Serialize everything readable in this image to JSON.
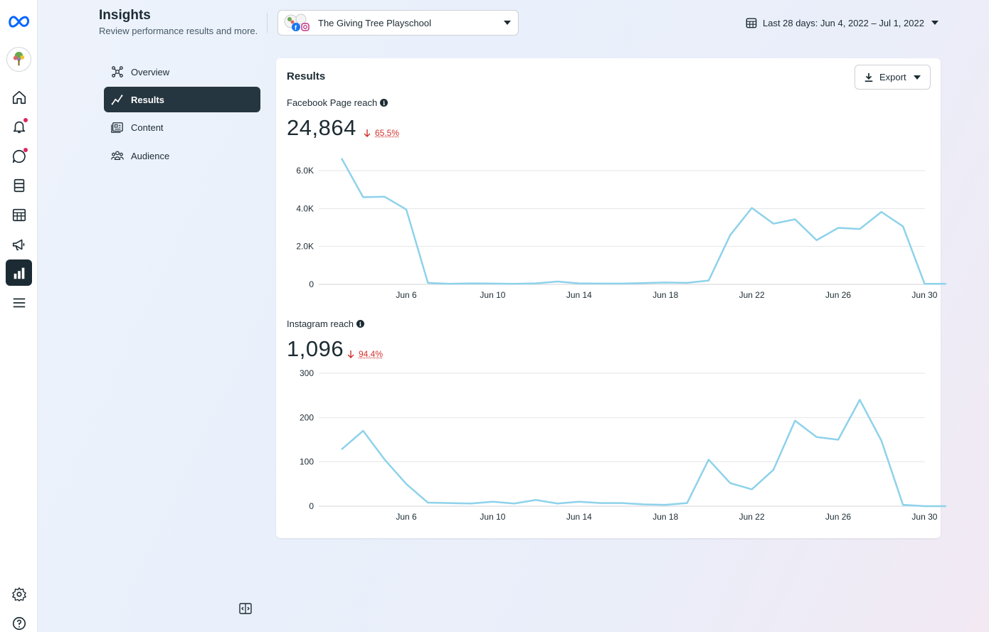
{
  "header": {
    "title": "Insights",
    "subtitle": "Review performance results and more.",
    "page_name": "The Giving Tree Playschool",
    "date_range": "Last 28 days: Jun 4, 2022 – Jul 1, 2022"
  },
  "rail": {
    "items": [
      "meta-logo-icon",
      "page-avatar",
      "home-icon",
      "notifications-icon",
      "inbox-icon",
      "content-icon",
      "planner-icon",
      "ads-icon",
      "insights-icon",
      "menu-icon",
      "settings-icon",
      "help-icon"
    ],
    "active": "insights-icon",
    "notification_dot_color": "#e0245e"
  },
  "side_nav": {
    "items": [
      {
        "label": "Overview",
        "icon": "overview-icon"
      },
      {
        "label": "Results",
        "icon": "results-icon",
        "active": true
      },
      {
        "label": "Content",
        "icon": "content-icon"
      },
      {
        "label": "Audience",
        "icon": "audience-icon"
      }
    ]
  },
  "card": {
    "title": "Results",
    "export_label": "Export",
    "metrics": [
      {
        "label": "Facebook Page reach",
        "value": "24,864",
        "change": "65.5%",
        "direction": "down"
      },
      {
        "label": "Instagram reach",
        "value": "1,096",
        "change": "94.4%",
        "direction": "down"
      }
    ]
  },
  "colors": {
    "line": "#8ed2ea",
    "active_nav": "#263640",
    "decrease": "#d0312d"
  },
  "chart_data": [
    {
      "type": "line",
      "title": "Facebook Page reach",
      "x_ticks": [
        "Jun 6",
        "Jun 10",
        "Jun 14",
        "Jun 18",
        "Jun 22",
        "Jun 26",
        "Jun 30"
      ],
      "y_ticks": [
        "0",
        "2.0K",
        "4.0K",
        "6.0K"
      ],
      "ylim": [
        0,
        6000
      ],
      "grid": true,
      "x": [
        "Jun 3",
        "Jun 4",
        "Jun 5",
        "Jun 6",
        "Jun 7",
        "Jun 8",
        "Jun 9",
        "Jun 10",
        "Jun 11",
        "Jun 12",
        "Jun 13",
        "Jun 14",
        "Jun 15",
        "Jun 16",
        "Jun 17",
        "Jun 18",
        "Jun 19",
        "Jun 20",
        "Jun 21",
        "Jun 22",
        "Jun 23",
        "Jun 24",
        "Jun 25",
        "Jun 26",
        "Jun 27",
        "Jun 28",
        "Jun 29",
        "Jun 30",
        "Jul 1"
      ],
      "values": [
        6650,
        4600,
        4620,
        3950,
        80,
        30,
        50,
        40,
        30,
        50,
        150,
        50,
        40,
        40,
        70,
        100,
        80,
        200,
        2600,
        4030,
        3200,
        3430,
        2330,
        2980,
        2920,
        3820,
        3060,
        30,
        30
      ]
    },
    {
      "type": "line",
      "title": "Instagram reach",
      "x_ticks": [
        "Jun 6",
        "Jun 10",
        "Jun 14",
        "Jun 18",
        "Jun 22",
        "Jun 26",
        "Jun 30"
      ],
      "y_ticks": [
        "0",
        "100",
        "200",
        "300"
      ],
      "ylim": [
        0,
        300
      ],
      "grid": true,
      "x": [
        "Jun 3",
        "Jun 4",
        "Jun 5",
        "Jun 6",
        "Jun 7",
        "Jun 8",
        "Jun 9",
        "Jun 10",
        "Jun 11",
        "Jun 12",
        "Jun 13",
        "Jun 14",
        "Jun 15",
        "Jun 16",
        "Jun 17",
        "Jun 18",
        "Jun 19",
        "Jun 20",
        "Jun 21",
        "Jun 22",
        "Jun 23",
        "Jun 24",
        "Jun 25",
        "Jun 26",
        "Jun 27",
        "Jun 28",
        "Jun 29",
        "Jun 30",
        "Jul 1"
      ],
      "values": [
        128,
        170,
        105,
        50,
        8,
        7,
        6,
        10,
        6,
        14,
        6,
        10,
        7,
        7,
        4,
        3,
        7,
        105,
        52,
        38,
        82,
        193,
        156,
        150,
        240,
        148,
        3,
        0,
        0
      ]
    }
  ]
}
